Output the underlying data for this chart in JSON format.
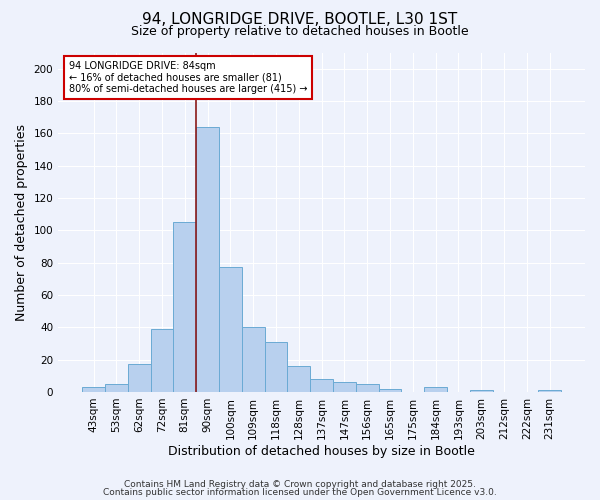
{
  "title": "94, LONGRIDGE DRIVE, BOOTLE, L30 1ST",
  "subtitle": "Size of property relative to detached houses in Bootle",
  "xlabel": "Distribution of detached houses by size in Bootle",
  "ylabel": "Number of detached properties",
  "bar_labels": [
    "43sqm",
    "53sqm",
    "62sqm",
    "72sqm",
    "81sqm",
    "90sqm",
    "100sqm",
    "109sqm",
    "118sqm",
    "128sqm",
    "137sqm",
    "147sqm",
    "156sqm",
    "165sqm",
    "175sqm",
    "184sqm",
    "193sqm",
    "203sqm",
    "212sqm",
    "222sqm",
    "231sqm"
  ],
  "bar_values": [
    3,
    5,
    17,
    39,
    105,
    164,
    77,
    40,
    31,
    16,
    8,
    6,
    5,
    2,
    0,
    3,
    0,
    1,
    0,
    0,
    1
  ],
  "bar_color": "#b8d0ee",
  "bar_edge_color": "#6aaad4",
  "ylim": [
    0,
    210
  ],
  "yticks": [
    0,
    20,
    40,
    60,
    80,
    100,
    120,
    140,
    160,
    180,
    200
  ],
  "vline_x_index": 4.5,
  "vline_color": "#8b1a1a",
  "annotation_text": "94 LONGRIDGE DRIVE: 84sqm\n← 16% of detached houses are smaller (81)\n80% of semi-detached houses are larger (415) →",
  "annotation_box_facecolor": "#ffffff",
  "annotation_box_edgecolor": "#cc0000",
  "footer_line1": "Contains HM Land Registry data © Crown copyright and database right 2025.",
  "footer_line2": "Contains public sector information licensed under the Open Government Licence v3.0.",
  "background_color": "#eef2fc",
  "grid_color": "#ffffff",
  "title_fontsize": 11,
  "subtitle_fontsize": 9,
  "axis_label_fontsize": 9,
  "tick_fontsize": 7.5,
  "annotation_fontsize": 7,
  "footer_fontsize": 6.5
}
